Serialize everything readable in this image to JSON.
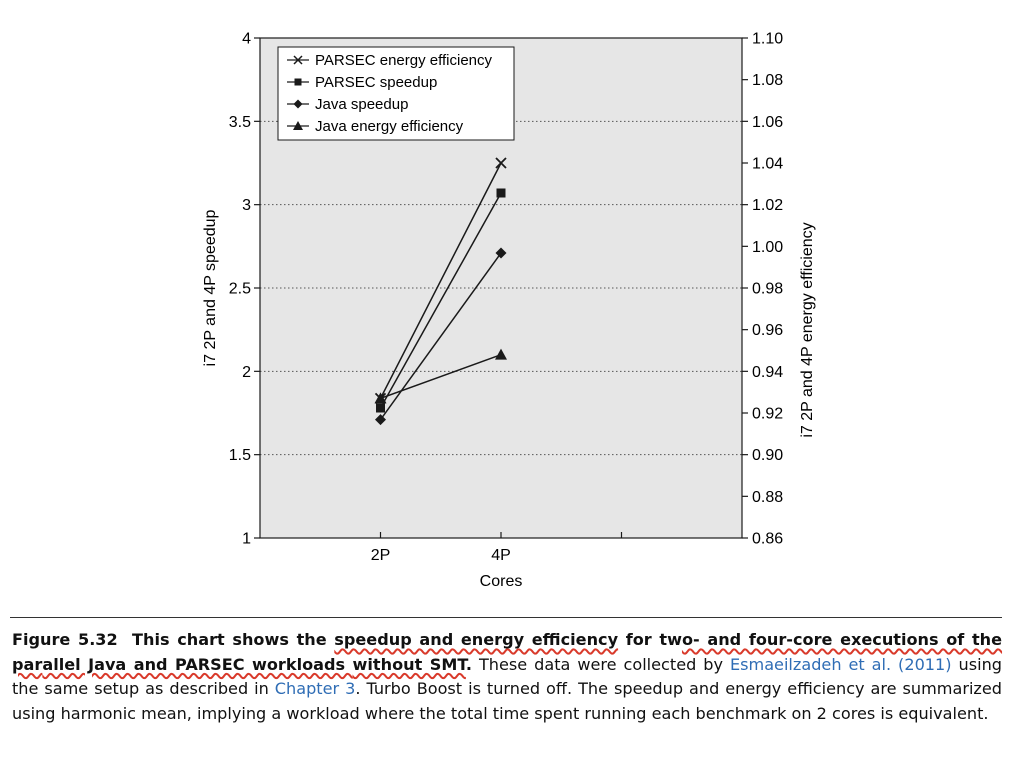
{
  "chart_data": {
    "type": "line",
    "categories": [
      "2P",
      "4P"
    ],
    "xlabel": "Cores",
    "ylabel": "i7 2P and 4P speedup",
    "y2label": "i7 2P and 4P energy efficiency",
    "ylim": [
      1,
      4
    ],
    "y2lim": [
      0.86,
      1.1
    ],
    "yticks": [
      "1",
      "1.5",
      "2",
      "2.5",
      "3",
      "3.5",
      "4"
    ],
    "y2ticks": [
      "0.86",
      "0.88",
      "0.90",
      "0.92",
      "0.94",
      "0.96",
      "0.98",
      "1.00",
      "1.02",
      "1.04",
      "1.06",
      "1.08",
      "1.10"
    ],
    "grid": "horizontal dotted",
    "legend_position": "top-left",
    "series": [
      {
        "name": "PARSEC energy efficiency",
        "axis": "right",
        "marker": "x",
        "values": [
          0.927,
          1.04
        ]
      },
      {
        "name": "PARSEC speedup",
        "axis": "left",
        "marker": "square",
        "values": [
          1.78,
          3.07
        ]
      },
      {
        "name": "Java speedup",
        "axis": "left",
        "marker": "diamond",
        "values": [
          1.71,
          2.71
        ]
      },
      {
        "name": "Java energy efficiency",
        "axis": "right",
        "marker": "triangle",
        "values": [
          0.927,
          0.948
        ]
      }
    ],
    "colors": {
      "plot_bg": "#e6e6e6",
      "line": "#1a1a1a"
    }
  },
  "caption": {
    "label": "Figure 5.32",
    "t1": "This chart shows the ",
    "t2": "speedup and energy efficiency",
    "t3": " for tw",
    "t4": "o- and four-core executions of the par",
    "t5": "allel Java and PARSEC workloads ",
    "t6": "without SMT",
    "t7": ".",
    "t8": " These data were collected by ",
    "link1": "Esmaeilzadeh et al. (2011)",
    "t9": " using the same setup as described in ",
    "link2": "Chapter 3",
    "t10": ". Turbo Boost is turned off. The speedup and energy efficiency are summarized using harmonic mean, implying a workload where the total time spent running each benchmark on 2 cores is equivalent."
  }
}
